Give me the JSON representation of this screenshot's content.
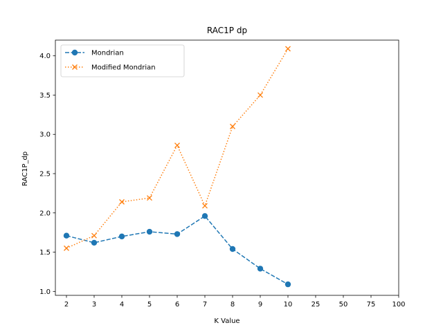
{
  "chart_data": {
    "type": "line",
    "title": "RAC1P dp",
    "xlabel": "K Value",
    "ylabel": "RAC1P_dp",
    "categories": [
      "2",
      "3",
      "4",
      "5",
      "6",
      "7",
      "8",
      "9",
      "10",
      "25",
      "50",
      "75",
      "100"
    ],
    "ylim": [
      0.95,
      4.2
    ],
    "yticks": [
      "1.0",
      "1.5",
      "2.0",
      "2.5",
      "3.0",
      "3.5",
      "4.0"
    ],
    "grid": false,
    "legend_position": "upper-left",
    "series": [
      {
        "name": "Mondrian",
        "color": "#1f77b4",
        "line_style": "dashed",
        "marker": "circle",
        "values": [
          1.71,
          1.62,
          1.7,
          1.76,
          1.73,
          1.96,
          1.54,
          1.29,
          1.09,
          null,
          null,
          null,
          null
        ]
      },
      {
        "name": "Modified Mondrian",
        "color": "#ff7f0e",
        "line_style": "dotted",
        "marker": "x",
        "values": [
          1.55,
          1.71,
          2.14,
          2.19,
          2.86,
          2.09,
          3.1,
          3.5,
          4.09,
          null,
          null,
          null,
          null
        ]
      }
    ]
  }
}
